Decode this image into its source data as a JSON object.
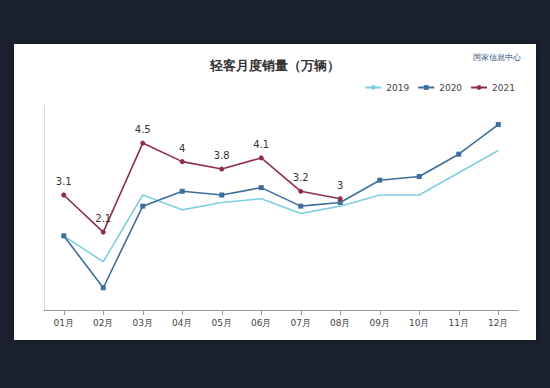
{
  "chart_data": {
    "type": "line",
    "title": "轻客月度销量（万辆）",
    "source": "国家信息中心",
    "categories": [
      "01月",
      "02月",
      "03月",
      "04月",
      "05月",
      "06月",
      "07月",
      "08月",
      "09月",
      "10月",
      "11月",
      "12月"
    ],
    "series": [
      {
        "name": "2019",
        "color": "#7fcfe0",
        "marker": "none",
        "values": [
          2.0,
          1.3,
          3.1,
          2.7,
          2.9,
          3.0,
          2.6,
          2.8,
          3.1,
          3.1,
          3.7,
          4.3
        ]
      },
      {
        "name": "2020",
        "color": "#3d6f9c",
        "marker": "rect",
        "values": [
          2.0,
          0.6,
          2.8,
          3.2,
          3.1,
          3.3,
          2.8,
          2.9,
          3.5,
          3.6,
          4.2,
          5.0
        ]
      },
      {
        "name": "2021",
        "color": "#8e2d4f",
        "marker": "circle",
        "data_labels": true,
        "values": [
          3.1,
          2.1,
          4.5,
          4.0,
          3.8,
          4.1,
          3.2,
          3.0,
          null,
          null,
          null,
          null
        ]
      }
    ],
    "ylim": [
      0,
      5.5
    ],
    "legend": "top-right",
    "grid": false,
    "tick_labels": "x"
  }
}
